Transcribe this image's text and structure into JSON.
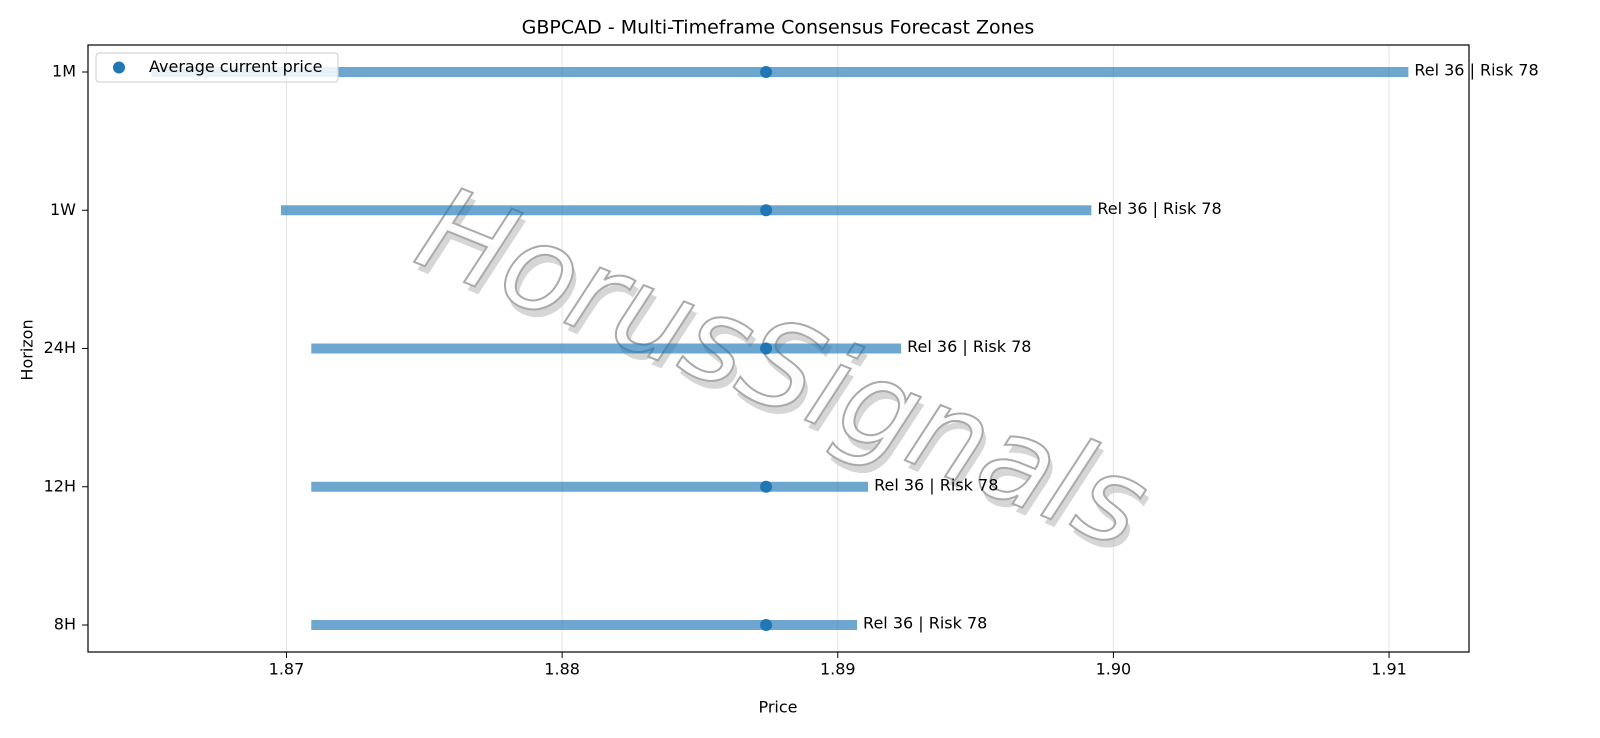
{
  "chart_data": {
    "type": "range_bar",
    "title": "GBPCAD - Multi-Timeframe Consensus Forecast Zones",
    "xlabel": "Price",
    "ylabel": "Horizon",
    "categories": [
      "1M",
      "1W",
      "24H",
      "12H",
      "8H"
    ],
    "starts": [
      1.8651,
      1.8698,
      1.8709,
      1.8709,
      1.8709
    ],
    "ends": [
      1.9107,
      1.8992,
      1.8923,
      1.8911,
      1.8907
    ],
    "color": "#1f77b4",
    "current": {
      "name": "Average current price",
      "color": "#1f77b4",
      "values": [
        1.8874,
        1.8874,
        1.8874,
        1.8874,
        1.8874
      ]
    },
    "annotations": [
      "Rel 36 | Risk 78",
      "Rel 36 | Risk 78",
      "Rel 36 | Risk 78",
      "Rel 36 | Risk 78",
      "Rel 36 | Risk 78"
    ],
    "xlim": [
      1.8628,
      1.9129
    ],
    "xticks": [
      1.87,
      1.88,
      1.89,
      {
        "value": 1.9,
        "label": "1.90"
      },
      1.91
    ],
    "grid": true,
    "legend": "upper left",
    "watermark": "HorusSignals"
  }
}
